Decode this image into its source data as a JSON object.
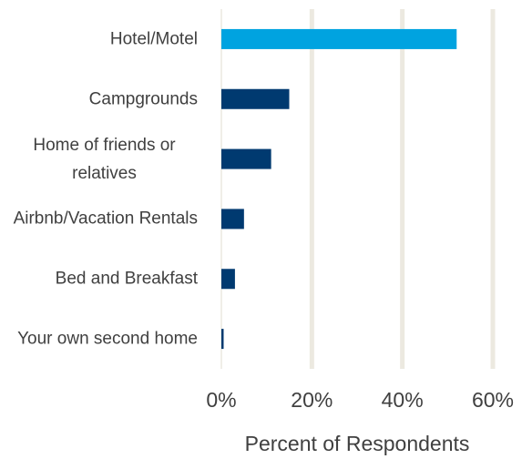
{
  "chart_data": {
    "type": "hbar",
    "categories": [
      "Hotel/Motel",
      "Campgrounds",
      "Home of friends or relatives",
      "Airbnb/Vacation Rentals",
      "Bed and Breakfast",
      "Your own second home"
    ],
    "values": [
      52,
      15,
      11,
      5,
      3,
      0.5
    ],
    "colors": [
      "#00a3e0",
      "#003a70",
      "#003a70",
      "#003a70",
      "#003a70",
      "#003a70"
    ],
    "xlabel": "Percent of Respondents",
    "xlim": [
      0,
      60
    ],
    "xticks": [
      {
        "value": 0,
        "label": "0%"
      },
      {
        "value": 20,
        "label": "20%"
      },
      {
        "value": 40,
        "label": "40%"
      },
      {
        "value": 60,
        "label": "60%"
      }
    ],
    "grid": true,
    "grid_color": "#ece9e0"
  }
}
